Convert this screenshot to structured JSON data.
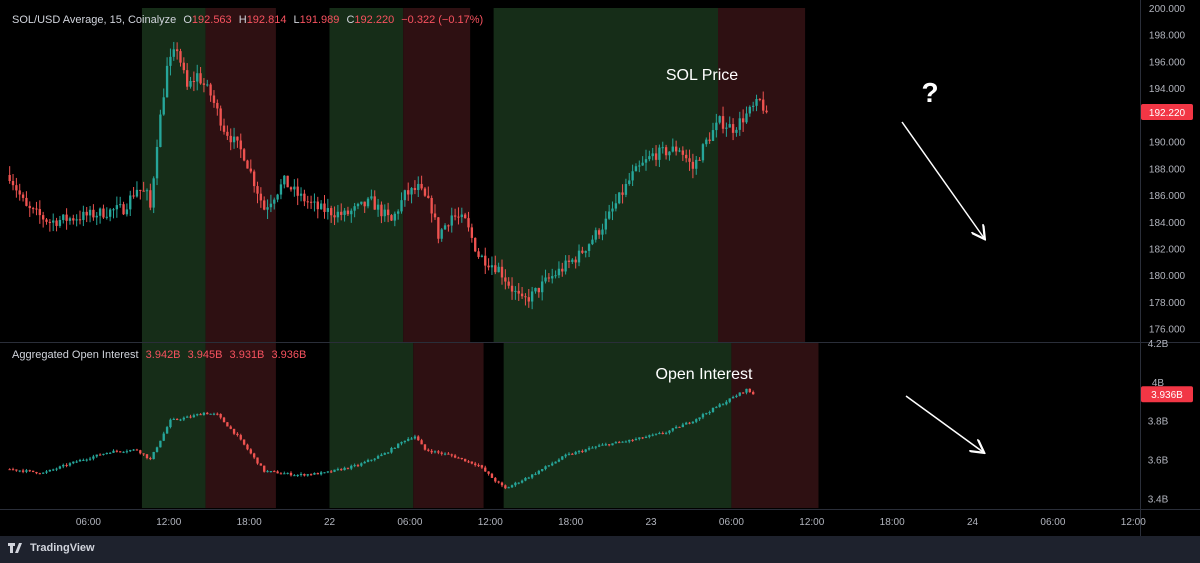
{
  "top_legend": {
    "symbol": "SOL/USD Average, 15, Coinalyze",
    "o_key": "O",
    "o_val": "192.563",
    "h_key": "H",
    "h_val": "192.814",
    "l_key": "L",
    "l_val": "191.989",
    "c_key": "C",
    "c_val": "192.220",
    "change": "−0.322 (−0.17%)"
  },
  "bottom_legend": {
    "title": "Aggregated Open Interest",
    "v1": "3.942B",
    "v2": "3.945B",
    "v3": "3.931B",
    "v4": "3.936B"
  },
  "annotations": {
    "price_title": "SOL Price",
    "oi_title": "Open Interest",
    "question": "?"
  },
  "brand": "TradingView",
  "colors": {
    "up": "#26a69a",
    "down": "#ef5350",
    "green_zone": "#162d18",
    "red_zone": "#2e1012",
    "badge": "#f23645"
  },
  "chart_data": [
    {
      "type": "candlestick",
      "title": "SOL/USD Average, 15, Coinalyze",
      "x_ticks": [
        "06:00",
        "12:00",
        "18:00",
        "22",
        "06:00",
        "12:00",
        "18:00",
        "23",
        "06:00",
        "12:00",
        "18:00",
        "24",
        "06:00",
        "12:00"
      ],
      "y_ticks": [
        "176.000",
        "178.000",
        "180.000",
        "182.000",
        "184.000",
        "186.000",
        "188.000",
        "190.000",
        "192.000",
        "194.000",
        "196.000",
        "198.000",
        "200.000"
      ],
      "ylim": [
        175,
        200
      ],
      "last_value": 192.22,
      "last_label": "192.220",
      "price_path": [
        {
          "t": 0,
          "p": 187.5
        },
        {
          "t": 5,
          "p": 185.0
        },
        {
          "t": 12,
          "p": 184.0
        },
        {
          "t": 24,
          "p": 184.5
        },
        {
          "t": 34,
          "p": 185.0
        },
        {
          "t": 38,
          "p": 186.5
        },
        {
          "t": 41,
          "p": 186.0
        },
        {
          "t": 42,
          "p": 185.0
        },
        {
          "t": 44,
          "p": 190.0
        },
        {
          "t": 47,
          "p": 195.5
        },
        {
          "t": 50,
          "p": 197.0
        },
        {
          "t": 53,
          "p": 194.0
        },
        {
          "t": 56,
          "p": 195.0
        },
        {
          "t": 60,
          "p": 193.5
        },
        {
          "t": 64,
          "p": 191.0
        },
        {
          "t": 70,
          "p": 189.0
        },
        {
          "t": 76,
          "p": 185.0
        },
        {
          "t": 82,
          "p": 187.0
        },
        {
          "t": 86,
          "p": 186.0
        },
        {
          "t": 92,
          "p": 185.0
        },
        {
          "t": 100,
          "p": 184.5
        },
        {
          "t": 108,
          "p": 185.5
        },
        {
          "t": 114,
          "p": 184.0
        },
        {
          "t": 118,
          "p": 186.0
        },
        {
          "t": 122,
          "p": 186.5
        },
        {
          "t": 126,
          "p": 185.0
        },
        {
          "t": 128,
          "p": 183.0
        },
        {
          "t": 132,
          "p": 184.5
        },
        {
          "t": 136,
          "p": 184.0
        },
        {
          "t": 140,
          "p": 181.5
        },
        {
          "t": 146,
          "p": 180.5
        },
        {
          "t": 150,
          "p": 179.0
        },
        {
          "t": 153,
          "p": 178.0
        },
        {
          "t": 156,
          "p": 178.5
        },
        {
          "t": 160,
          "p": 179.5
        },
        {
          "t": 170,
          "p": 181.5
        },
        {
          "t": 178,
          "p": 184.0
        },
        {
          "t": 186,
          "p": 187.5
        },
        {
          "t": 192,
          "p": 189.0
        },
        {
          "t": 200,
          "p": 189.5
        },
        {
          "t": 204,
          "p": 188.0
        },
        {
          "t": 208,
          "p": 190.0
        },
        {
          "t": 212,
          "p": 191.5
        },
        {
          "t": 216,
          "p": 191.0
        },
        {
          "t": 222,
          "p": 192.5
        },
        {
          "t": 224,
          "p": 193.0
        },
        {
          "t": 226,
          "p": 192.2
        }
      ],
      "zones": [
        {
          "from": 40,
          "to": 59,
          "kind": "green"
        },
        {
          "from": 59,
          "to": 80,
          "kind": "red"
        },
        {
          "from": 96,
          "to": 118,
          "kind": "green"
        },
        {
          "from": 118,
          "to": 138,
          "kind": "red"
        },
        {
          "from": 145,
          "to": 212,
          "kind": "green"
        },
        {
          "from": 212,
          "to": 238,
          "kind": "red"
        }
      ]
    },
    {
      "type": "candlestick",
      "title": "Aggregated Open Interest",
      "y_ticks": [
        "3.4B",
        "3.6B",
        "3.8B",
        "4B",
        "4.2B"
      ],
      "ylim": [
        3.35,
        4.2
      ],
      "last_value": 3.936,
      "last_label": "3.936B",
      "oi_path": [
        {
          "t": 0,
          "p": 3.55
        },
        {
          "t": 10,
          "p": 3.53
        },
        {
          "t": 20,
          "p": 3.59
        },
        {
          "t": 30,
          "p": 3.64
        },
        {
          "t": 38,
          "p": 3.65
        },
        {
          "t": 42,
          "p": 3.6
        },
        {
          "t": 48,
          "p": 3.8
        },
        {
          "t": 54,
          "p": 3.82
        },
        {
          "t": 58,
          "p": 3.84
        },
        {
          "t": 62,
          "p": 3.83
        },
        {
          "t": 68,
          "p": 3.72
        },
        {
          "t": 76,
          "p": 3.54
        },
        {
          "t": 86,
          "p": 3.52
        },
        {
          "t": 94,
          "p": 3.53
        },
        {
          "t": 104,
          "p": 3.57
        },
        {
          "t": 112,
          "p": 3.63
        },
        {
          "t": 118,
          "p": 3.7
        },
        {
          "t": 121,
          "p": 3.72
        },
        {
          "t": 124,
          "p": 3.65
        },
        {
          "t": 132,
          "p": 3.62
        },
        {
          "t": 140,
          "p": 3.57
        },
        {
          "t": 145,
          "p": 3.49
        },
        {
          "t": 148,
          "p": 3.45
        },
        {
          "t": 156,
          "p": 3.52
        },
        {
          "t": 166,
          "p": 3.62
        },
        {
          "t": 176,
          "p": 3.67
        },
        {
          "t": 186,
          "p": 3.7
        },
        {
          "t": 196,
          "p": 3.74
        },
        {
          "t": 204,
          "p": 3.8
        },
        {
          "t": 212,
          "p": 3.88
        },
        {
          "t": 218,
          "p": 3.94
        },
        {
          "t": 220,
          "p": 3.96
        },
        {
          "t": 222,
          "p": 3.936
        }
      ],
      "zones": [
        {
          "from": 40,
          "to": 59,
          "kind": "green"
        },
        {
          "from": 59,
          "to": 80,
          "kind": "red"
        },
        {
          "from": 96,
          "to": 121,
          "kind": "green"
        },
        {
          "from": 121,
          "to": 142,
          "kind": "red"
        },
        {
          "from": 148,
          "to": 216,
          "kind": "green"
        },
        {
          "from": 216,
          "to": 242,
          "kind": "red"
        }
      ]
    }
  ]
}
